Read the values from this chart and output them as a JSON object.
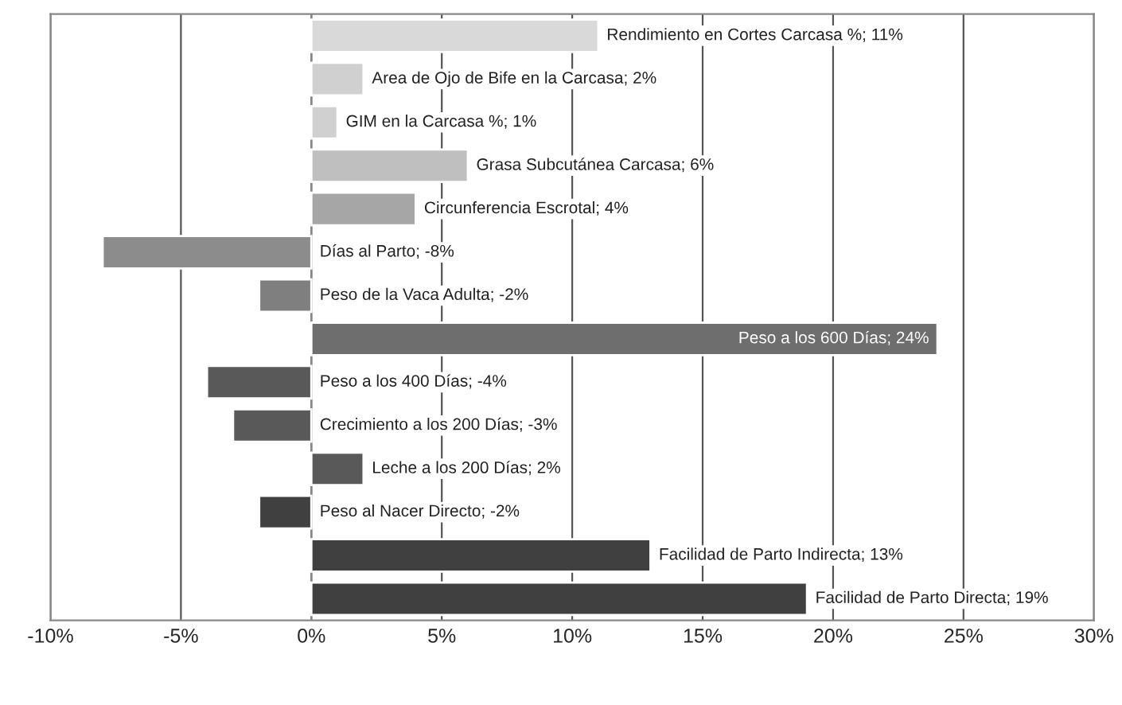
{
  "chart_data": {
    "type": "bar",
    "orientation": "horizontal",
    "categories": [
      null,
      null,
      null,
      null,
      null,
      null,
      null,
      null,
      null,
      null,
      null,
      null,
      null,
      null
    ],
    "values": [
      11,
      2,
      1,
      6,
      4,
      -8,
      -2,
      24,
      -4,
      -3,
      2,
      -2,
      13,
      19
    ],
    "value_labels": [
      "Rendimiento en Cortes Carcasa %; 11%",
      "Area de Ojo de Bife en la Carcasa; 2%",
      "GIM en la Carcasa %; 1%",
      "Grasa Subcutánea Carcasa; 6%",
      "Circunferencia Escrotal; 4%",
      "Días al Parto; -8%",
      "Peso de la Vaca Adulta; -2%",
      "Peso a los 600 Días; 24%",
      "Peso a los 400 Días; -4%",
      "Crecimiento a los 200 Días; -3%",
      "Leche a los 200 Días; 2%",
      "Peso al Nacer Directo; -2%",
      "Facilidad de Parto Indirecta; 13%",
      "Facilidad de Parto Directa; 19%"
    ],
    "colors": [
      "#d9d9d9",
      "#d0d0d0",
      "#d0d0d0",
      "#bfbfbf",
      "#a6a6a6",
      "#8c8c8c",
      "#7f7f7f",
      "#6e6e6e",
      "#595959",
      "#595959",
      "#595959",
      "#404040",
      "#404040",
      "#404040"
    ],
    "xlim": [
      -10,
      30
    ],
    "xticks": [
      {
        "value": -10,
        "label": "-10%"
      },
      {
        "value": -5,
        "label": "-5%"
      },
      {
        "value": 0,
        "label": "0%"
      },
      {
        "value": 5,
        "label": "5%"
      },
      {
        "value": 10,
        "label": "10%"
      },
      {
        "value": 15,
        "label": "15%"
      },
      {
        "value": 20,
        "label": "20%"
      },
      {
        "value": 25,
        "label": "25%"
      },
      {
        "value": 30,
        "label": "30%"
      }
    ],
    "grid": "x",
    "legend": false
  }
}
